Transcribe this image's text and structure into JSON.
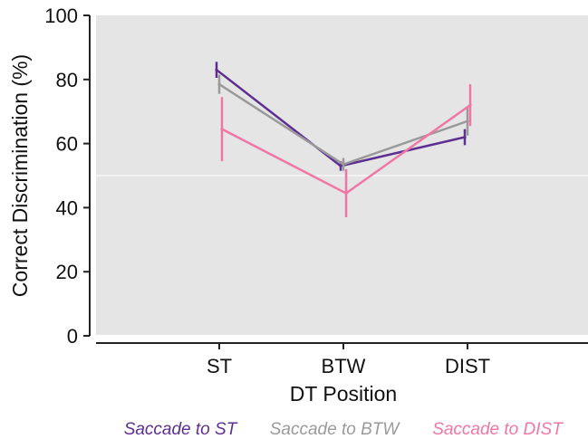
{
  "chart_data": {
    "type": "line",
    "xlabel": "DT Position",
    "ylabel": "Correct Discrimination (%)",
    "categories": [
      "ST",
      "BTW",
      "DIST"
    ],
    "ylim": [
      0,
      100
    ],
    "yticks": [
      "0",
      "20",
      "40",
      "60",
      "80",
      "100"
    ],
    "reference_line": 50,
    "grid": false,
    "background": "#e5e5e5",
    "legend_position": "bottom",
    "series": [
      {
        "name": "Saccade to ST",
        "color": "#5e2f93",
        "values": [
          83,
          53,
          62
        ],
        "errors": [
          2.5,
          1.5,
          2.5
        ]
      },
      {
        "name": "Saccade to BTW",
        "color": "#9a9a9a",
        "values": [
          78.5,
          53.5,
          67
        ],
        "errors": [
          3,
          2,
          4.5
        ]
      },
      {
        "name": "Saccade to DIST",
        "color": "#f077a5",
        "values": [
          64.5,
          44.5,
          72
        ],
        "errors": [
          10,
          7.5,
          6.5
        ]
      }
    ]
  }
}
